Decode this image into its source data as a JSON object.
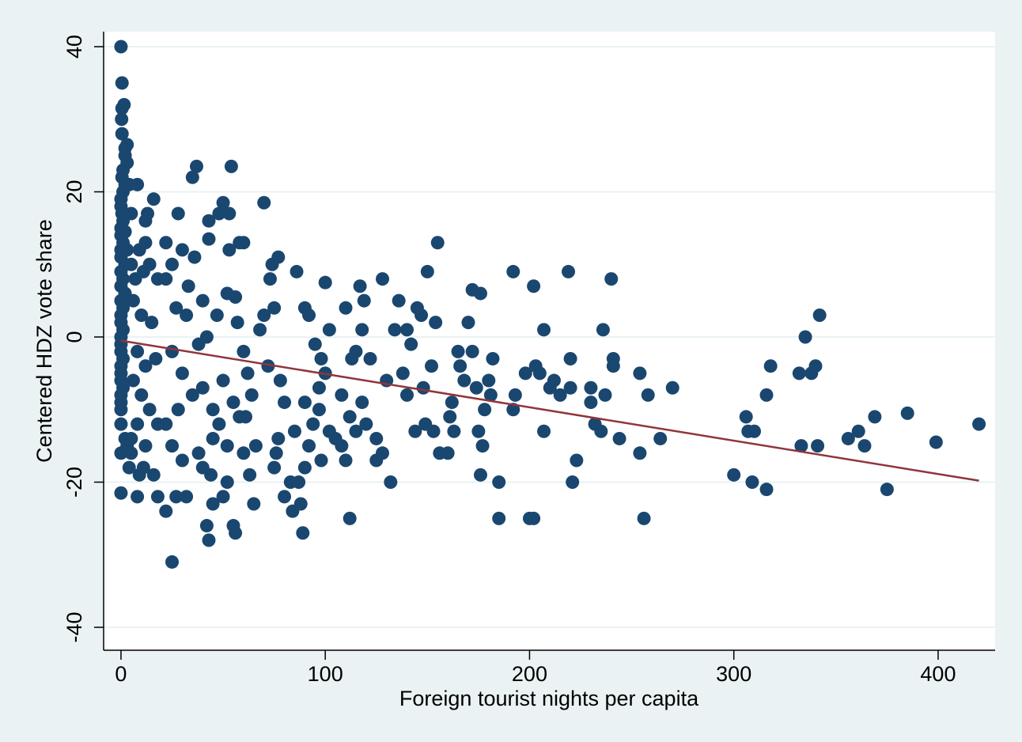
{
  "chart_data": {
    "type": "scatter",
    "xlabel": "Foreign tourist nights per capita",
    "ylabel": "Centered HDZ vote share",
    "xlim": [
      -8.5,
      427.9
    ],
    "ylim": [
      -43.16,
      42.07
    ],
    "xticks": [
      0,
      100,
      200,
      300,
      400
    ],
    "yticks": [
      -40,
      -20,
      0,
      20,
      40
    ],
    "grid": true,
    "color": "#1a476f",
    "x": [
      0,
      0.5,
      0.5,
      1.5,
      0.3,
      0.5,
      2,
      3,
      2,
      3,
      1,
      0.5,
      2,
      1,
      0,
      0,
      0.5,
      1,
      0,
      0,
      2,
      1,
      0,
      3,
      0,
      2,
      0,
      1,
      0,
      2,
      0,
      1,
      0,
      0,
      1,
      0,
      0,
      0,
      1,
      0,
      0,
      0,
      1,
      0,
      0,
      0,
      0,
      0,
      0,
      2,
      3,
      4,
      5,
      4,
      8,
      5,
      12,
      16,
      13,
      9,
      12,
      5,
      7,
      11,
      14,
      18,
      6,
      10,
      15,
      8,
      12,
      17,
      6,
      10,
      14,
      18,
      8,
      5,
      12,
      16,
      9,
      8,
      18,
      11,
      22,
      28,
      25,
      30,
      33,
      35,
      37,
      36,
      22,
      27,
      32,
      40,
      42,
      38,
      25,
      30,
      35,
      28,
      22,
      40,
      45,
      50,
      45,
      38,
      30,
      25,
      22,
      27,
      32,
      25,
      42,
      43,
      44,
      52,
      56,
      55,
      45,
      50,
      52,
      48,
      55,
      58,
      43,
      43,
      48,
      50,
      53,
      54,
      53,
      58,
      60,
      47,
      52,
      56,
      57,
      60,
      62,
      64,
      60,
      63,
      65,
      66,
      61,
      40,
      70,
      74,
      77,
      73,
      75,
      70,
      68,
      72,
      78,
      80,
      77,
      76,
      75,
      80,
      84,
      83,
      87,
      89,
      88,
      85,
      90,
      86,
      90,
      92,
      95,
      98,
      97,
      94,
      92,
      98,
      90,
      100,
      102,
      100,
      97,
      102,
      105,
      108,
      110,
      108,
      112,
      115,
      118,
      120,
      113,
      115,
      117,
      119,
      122,
      125,
      118,
      110,
      112,
      128,
      130,
      125,
      128,
      132,
      134,
      136,
      138,
      140,
      140,
      142,
      144,
      145,
      147,
      148,
      149,
      150,
      152,
      153,
      155,
      154,
      156,
      160,
      161,
      162,
      163,
      165,
      166,
      170,
      168,
      172,
      174,
      172,
      176,
      175,
      177,
      176,
      178,
      180,
      182,
      181,
      185,
      185,
      192,
      193,
      192,
      198,
      200,
      202,
      202,
      203,
      205,
      207,
      207,
      210,
      212,
      215,
      219,
      220,
      220,
      221,
      223,
      230,
      230,
      232,
      235,
      236,
      237,
      240,
      241,
      241,
      244,
      254,
      254,
      256,
      258,
      264,
      270,
      300,
      306,
      307,
      310,
      309,
      316,
      316,
      318,
      332,
      333,
      335,
      338,
      340,
      341,
      342,
      356,
      361,
      364,
      369,
      375,
      385,
      399,
      420
    ],
    "y": [
      40,
      35,
      31.5,
      32,
      30,
      28,
      26,
      26.5,
      25,
      24,
      23,
      22,
      21,
      20,
      19,
      18,
      17,
      16,
      15,
      14,
      14.5,
      13,
      12,
      12,
      11,
      10,
      9,
      8,
      7,
      6,
      5,
      4,
      3,
      2,
      1,
      0,
      -1,
      -2,
      -3,
      -4,
      -5,
      -6,
      -7,
      -8,
      -9,
      -10,
      -12,
      -16,
      -21.5,
      -14,
      -15,
      -18,
      -16,
      21,
      21,
      17,
      16,
      19,
      17,
      12,
      13,
      10,
      8,
      9,
      10,
      8,
      5,
      3,
      2,
      -2,
      -4,
      -3,
      -6,
      -8,
      -10,
      -12,
      -12,
      -14,
      -15,
      -19,
      -19,
      -22,
      -22,
      -18,
      13,
      17,
      10,
      12,
      7,
      22,
      23.5,
      11,
      8,
      4,
      3,
      5,
      0,
      -1,
      -2,
      -5,
      -8,
      -10,
      -12,
      -7,
      -10,
      -6,
      -14,
      -16,
      -17,
      -15,
      -24,
      -22,
      -22,
      -31,
      -26,
      -28,
      -19,
      -20,
      -27,
      -26,
      -23,
      -22,
      -15,
      -12,
      -9,
      -11,
      16,
      13.5,
      17,
      18.5,
      17,
      23.5,
      12,
      13,
      13,
      3,
      6,
      5.5,
      2,
      -2,
      -5,
      -8,
      -16,
      -19,
      -23,
      -15,
      -11,
      -18,
      18.5,
      10,
      11,
      8,
      4,
      3,
      1,
      -4,
      -6,
      -9,
      -14,
      -16,
      -18,
      -22,
      -24,
      -20,
      -20,
      -27,
      -23,
      -13,
      -9,
      9,
      4,
      3,
      -1,
      -3,
      -7,
      -12,
      -15,
      -17,
      -18,
      7.5,
      1,
      -5,
      -10,
      -13,
      -14,
      -15,
      -17,
      -8,
      -11,
      -13,
      -9,
      -12,
      -3,
      -2,
      7,
      5,
      -3,
      -17,
      1,
      4,
      -25,
      8,
      -6,
      -14,
      -16,
      -20,
      1,
      5,
      -5,
      -8,
      1,
      -1,
      -13,
      4,
      3,
      -7,
      -12,
      9,
      -4,
      -13,
      13,
      2,
      -16,
      -16,
      -11,
      -9,
      -13,
      -2,
      -4,
      2,
      -6,
      -2,
      -7,
      6.5,
      6,
      -13,
      -15,
      -19,
      -10,
      -6,
      -3,
      -8,
      -20,
      -25,
      9,
      -8,
      -10,
      -5,
      -25,
      -25,
      7,
      -4,
      -5,
      1,
      -13,
      -7,
      -6,
      -8,
      9,
      -3,
      -7,
      -20,
      -17,
      -7,
      -9,
      -12,
      -13,
      1,
      -8,
      8,
      -3,
      -4,
      -14,
      -5,
      -16,
      -25,
      -8,
      -14,
      -7,
      -19,
      -11,
      -13,
      -13,
      -20,
      -8,
      -21,
      -4,
      -5,
      -15,
      0,
      -5,
      -4,
      -15,
      3,
      -14,
      -13,
      -15,
      -11,
      -21,
      -10.5,
      -14.5,
      -12
    ],
    "fit_line": {
      "x": [
        0,
        420
      ],
      "y": [
        -0.5,
        -19.8
      ],
      "color": "#90353b"
    }
  }
}
